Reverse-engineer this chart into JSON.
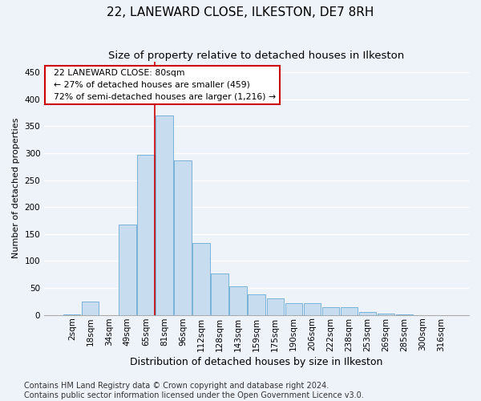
{
  "title": "22, LANEWARD CLOSE, ILKESTON, DE7 8RH",
  "subtitle": "Size of property relative to detached houses in Ilkeston",
  "xlabel": "Distribution of detached houses by size in Ilkeston",
  "ylabel": "Number of detached properties",
  "categories": [
    "2sqm",
    "18sqm",
    "34sqm",
    "49sqm",
    "65sqm",
    "81sqm",
    "96sqm",
    "112sqm",
    "128sqm",
    "143sqm",
    "159sqm",
    "175sqm",
    "190sqm",
    "206sqm",
    "222sqm",
    "238sqm",
    "253sqm",
    "269sqm",
    "285sqm",
    "300sqm",
    "316sqm"
  ],
  "values": [
    1,
    25,
    0,
    168,
    297,
    370,
    287,
    133,
    77,
    53,
    38,
    30,
    22,
    22,
    15,
    15,
    5,
    3,
    1,
    0,
    0
  ],
  "bar_color": "#c8dcf0",
  "bar_edge_color": "#6aaad4",
  "annotation_text_line1": "22 LANEWARD CLOSE: 80sqm",
  "annotation_text_line2": "← 27% of detached houses are smaller (459)",
  "annotation_text_line3": "72% of semi-detached houses are larger (1,216) →",
  "annotation_box_color": "white",
  "annotation_box_edge_color": "#cc0000",
  "vline_color": "#cc0000",
  "ylim": [
    0,
    470
  ],
  "yticks": [
    0,
    50,
    100,
    150,
    200,
    250,
    300,
    350,
    400,
    450
  ],
  "footer_line1": "Contains HM Land Registry data © Crown copyright and database right 2024.",
  "footer_line2": "Contains public sector information licensed under the Open Government Licence v3.0.",
  "bg_color": "#eef3fa",
  "grid_color": "#ffffff",
  "title_fontsize": 11,
  "subtitle_fontsize": 9.5,
  "xlabel_fontsize": 9,
  "ylabel_fontsize": 8,
  "tick_fontsize": 7.5,
  "annotation_fontsize": 7.8,
  "footer_fontsize": 7
}
